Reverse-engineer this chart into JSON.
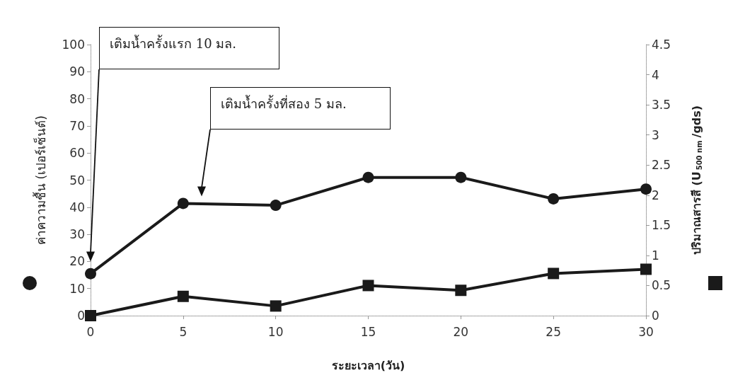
{
  "chart_data": {
    "type": "line",
    "xlabel": "ระยะเวลา(วัน)",
    "ylabel": "ค่าความชื้น (เปอร์เซ็นต์)",
    "y2label": "ปริมาณสารสี (U$_{500 nm}$/gds)",
    "x": [
      0,
      5,
      10,
      15,
      20,
      25,
      30
    ],
    "series": [
      {
        "color": "#1a1a1a",
        "marker": "circle",
        "values": [
          15.5,
          41.4,
          40.7,
          51,
          51,
          43.1,
          46.7
        ]
      },
      {
        "color": "#1a1a1a",
        "marker": "square",
        "axis": "y2",
        "values": [
          0,
          0.32,
          0.16,
          0.5,
          0.42,
          0.7,
          0.77
        ]
      }
    ],
    "xlim": [
      0,
      30
    ],
    "xticks": [
      0,
      5,
      10,
      15,
      20,
      25,
      30
    ],
    "ylim": [
      0,
      100
    ],
    "yticks": [
      0,
      10,
      20,
      30,
      40,
      50,
      60,
      70,
      80,
      90,
      100
    ],
    "y2lim": [
      0,
      4.5
    ],
    "y2ticks": [
      0,
      0.5,
      1,
      1.5,
      2,
      2.5,
      3,
      3.5,
      4,
      4.5
    ],
    "grid": false,
    "line_style": "solid",
    "annotations": [
      "เติมน้ำครั้งแรก 10 มล.",
      "เติมน้ำครั้งที่สอง 5 มล."
    ]
  }
}
